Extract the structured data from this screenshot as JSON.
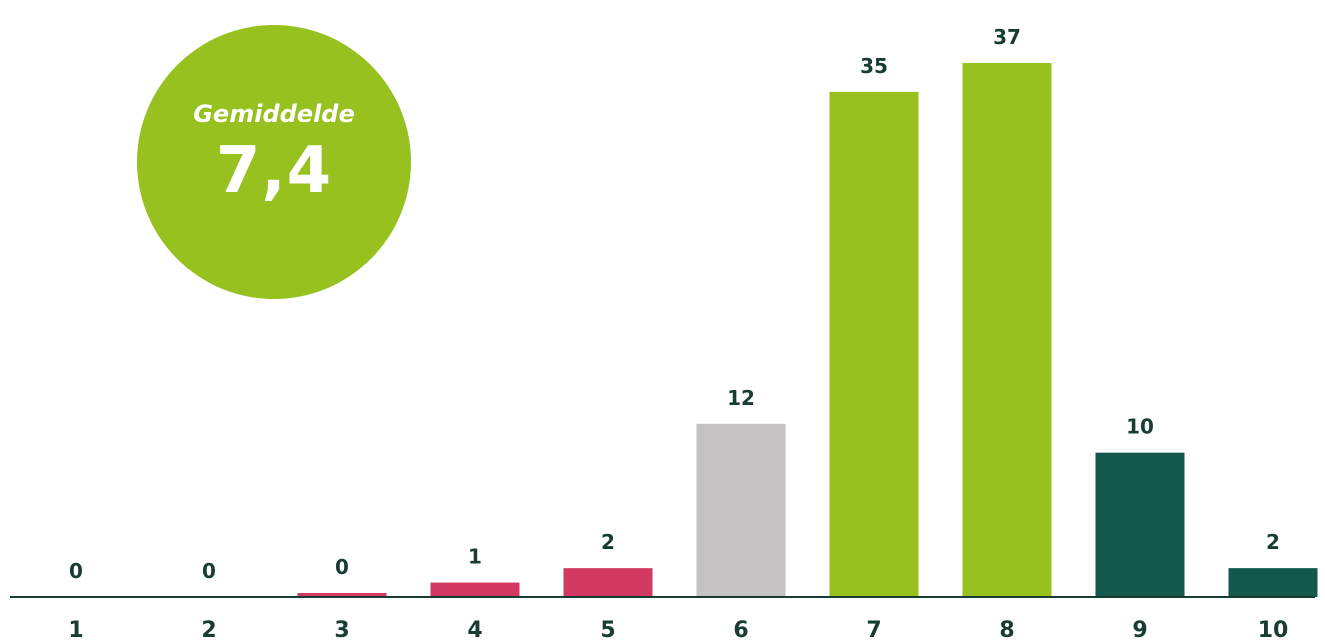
{
  "chart_data": {
    "type": "bar",
    "categories": [
      "1",
      "2",
      "3",
      "4",
      "5",
      "6",
      "7",
      "8",
      "9",
      "10"
    ],
    "values": [
      0,
      0,
      0,
      1,
      2,
      12,
      35,
      37,
      10,
      2
    ],
    "bar_colors": [
      "#D23A63",
      "#D23A63",
      "#D23A63",
      "#D23A63",
      "#D23A63",
      "#C4C2C3",
      "#97C11F",
      "#97C11F",
      "#13584B",
      "#13584B"
    ],
    "title": "",
    "xlabel": "",
    "ylabel": "",
    "ylim": [
      0,
      37
    ],
    "grid": false,
    "legend": "none"
  },
  "average": {
    "label": "Gemiddelde",
    "value": "7,4"
  },
  "colors": {
    "label_text": "#173C34",
    "axis": "#173C34",
    "average_circle": "#97C11F",
    "negative": "#D23A63",
    "neutral": "#C4C2C3",
    "positive": "#97C11F",
    "top": "#13584B"
  }
}
